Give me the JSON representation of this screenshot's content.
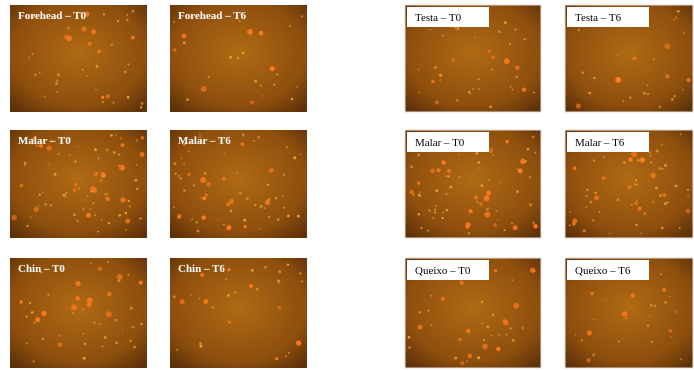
{
  "english_panels": [
    "Forehead – T0",
    "Forehead – T6",
    "Malar – T0",
    "Malar – T6",
    "Chin – T0",
    "Chin – T6"
  ],
  "portuguese_panels": [
    "Testa – T0",
    "Testa – T6",
    "Malar – T0",
    "Malar – T6",
    "Queixo – T0",
    "Queixo – T6"
  ]
}
